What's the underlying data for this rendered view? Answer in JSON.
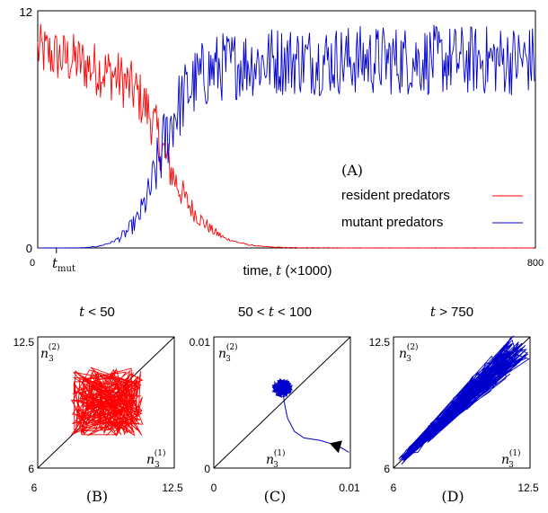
{
  "chart_data": [
    {
      "id": "A",
      "type": "line",
      "panel_label": "(A)",
      "xlabel": "time, t (×1000)",
      "xlim": [
        0,
        800
      ],
      "ylim": [
        0,
        12
      ],
      "x_ticks": [
        "0",
        "800"
      ],
      "y_ticks": [
        "0",
        "12"
      ],
      "marker_label": "t_mut",
      "marker_x": 30,
      "legend_position": "bottom-right",
      "series": [
        {
          "name": "resident predators",
          "color": "#ff0000",
          "x": [
            0,
            20,
            40,
            60,
            80,
            100,
            120,
            140,
            160,
            180,
            200,
            220,
            240,
            260,
            280,
            300,
            320,
            340,
            360,
            380,
            400,
            450,
            500,
            550,
            600,
            650,
            700,
            750,
            800
          ],
          "y": [
            10,
            9.8,
            9.6,
            9.5,
            9.2,
            9.0,
            8.8,
            8.4,
            7.8,
            6.8,
            5.0,
            3.5,
            2.3,
            1.5,
            0.9,
            0.5,
            0.3,
            0.15,
            0.08,
            0.04,
            0.02,
            0.01,
            0,
            0,
            0,
            0,
            0,
            0,
            0
          ]
        },
        {
          "name": "mutant predators",
          "color": "#0000cc",
          "x": [
            0,
            20,
            40,
            60,
            80,
            100,
            120,
            140,
            160,
            180,
            200,
            220,
            240,
            260,
            280,
            300,
            320,
            340,
            360,
            380,
            400,
            450,
            500,
            550,
            600,
            650,
            700,
            750,
            800
          ],
          "y": [
            0,
            0,
            0,
            0,
            0.02,
            0.1,
            0.3,
            0.7,
            1.4,
            2.8,
            5.0,
            6.8,
            7.9,
            8.6,
            9.0,
            9.2,
            9.3,
            9.4,
            9.4,
            9.5,
            9.5,
            9.5,
            9.5,
            9.5,
            9.5,
            9.5,
            9.5,
            9.5,
            9.5
          ]
        }
      ]
    },
    {
      "id": "B",
      "type": "line",
      "title": "t < 50",
      "panel_label": "(B)",
      "xlim": [
        6,
        12.5
      ],
      "ylim": [
        6,
        12.5
      ],
      "x_ticks": [
        "6",
        "12.5"
      ],
      "y_ticks": [
        "6",
        "12.5"
      ],
      "ylabel": "n_3^(2)",
      "xlabel": "n_3^(1)",
      "color": "#ff0000",
      "center": [
        9.3,
        9.3
      ],
      "spread": 1.7
    },
    {
      "id": "C",
      "type": "line",
      "title": "50 < t < 100",
      "panel_label": "(C)",
      "xlim": [
        0,
        0.01
      ],
      "ylim": [
        0,
        0.01
      ],
      "x_ticks": [
        "0",
        "0.01"
      ],
      "y_ticks": [
        "0",
        "0.01"
      ],
      "ylabel": "n'_3^(2)",
      "xlabel": "n'_3^(1)",
      "color": "#0000cc",
      "center": [
        0.005,
        0.0061
      ],
      "spread": 0.0007
    },
    {
      "id": "D",
      "type": "line",
      "title": "t > 750",
      "panel_label": "(D)",
      "xlim": [
        6,
        12.5
      ],
      "ylim": [
        6,
        12.5
      ],
      "x_ticks": [
        "6",
        "12.5"
      ],
      "y_ticks": [
        "6",
        "12.5"
      ],
      "ylabel": "n'_3^(2)",
      "xlabel": "n'_3^(1)",
      "color": "#0000cc",
      "diag_range": [
        6.3,
        12.2
      ]
    }
  ]
}
